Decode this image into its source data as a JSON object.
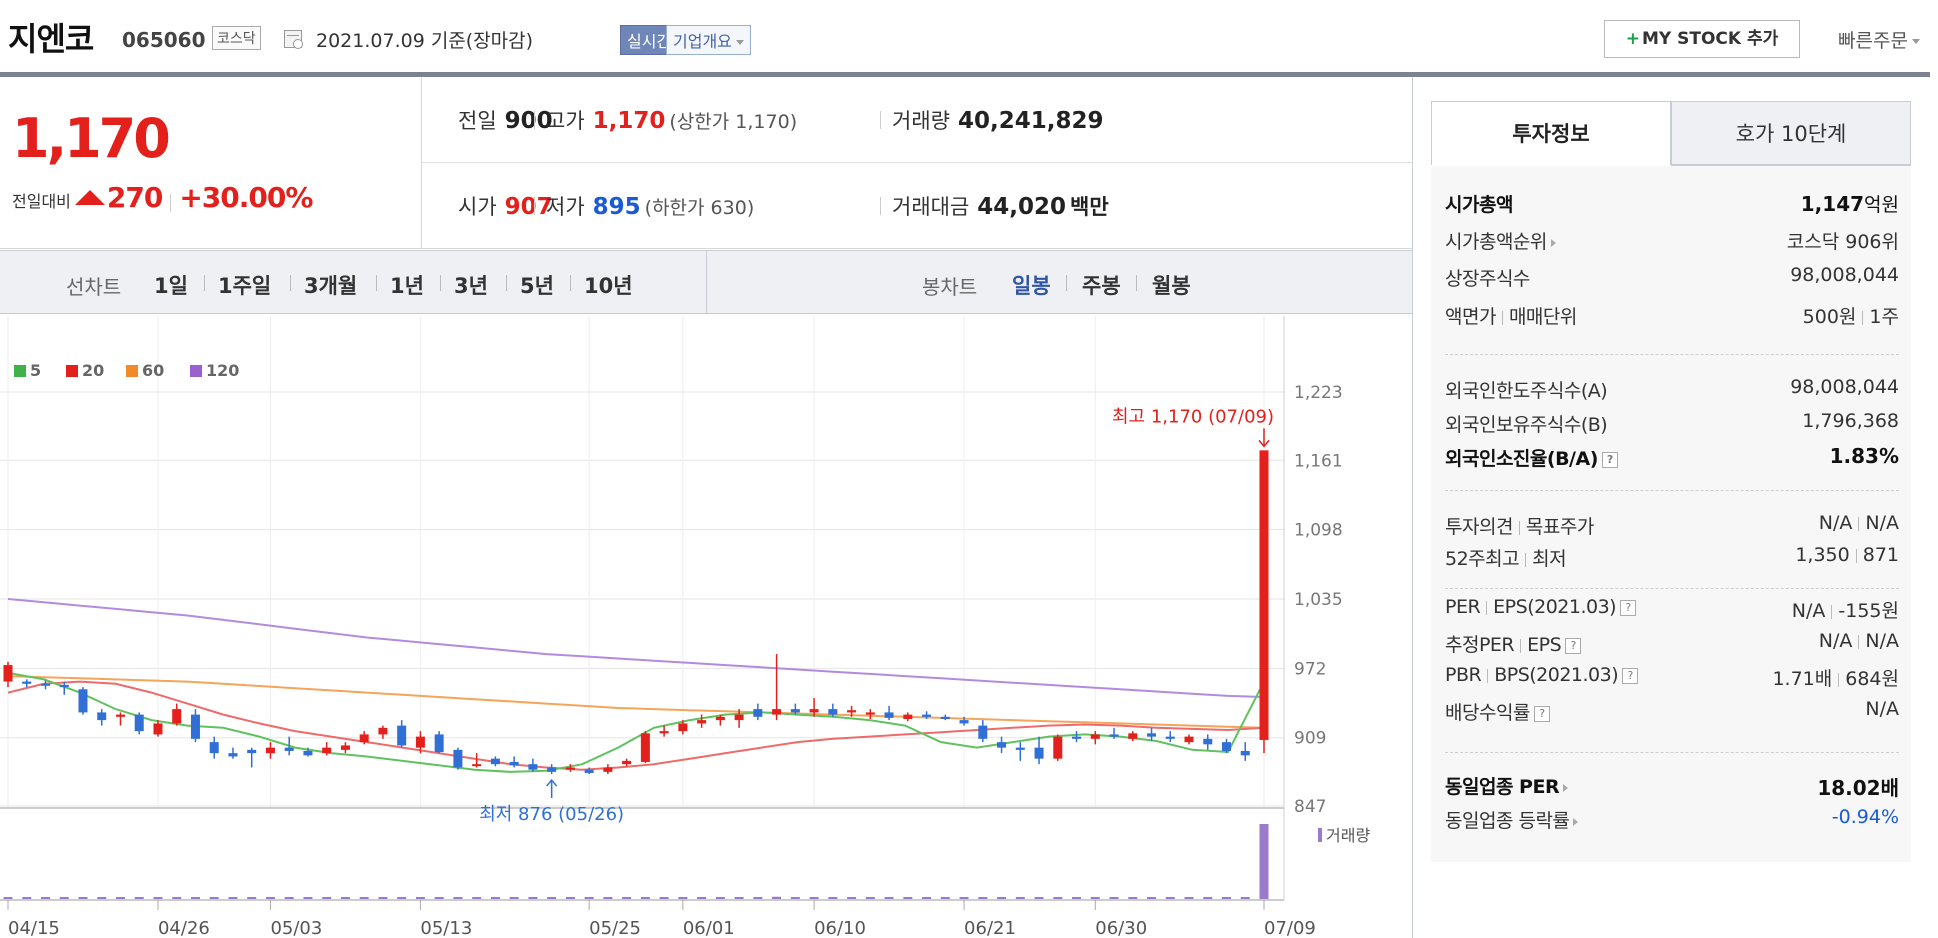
{
  "header": {
    "company": "지엔코",
    "code": "065060",
    "market": "코스닥",
    "date_text": "2021.07.09  기준(장마감)",
    "realtime_label": "실시간",
    "company_info_label": "기업개요",
    "mystock_label": "MY STOCK 추가",
    "quick_order_label": "빠른주문"
  },
  "price": {
    "current": "1,170",
    "change_label": "전일대비",
    "change_value": "270",
    "change_pct": "+30.00%"
  },
  "stats": {
    "prev_label": "전일",
    "prev_value": "900",
    "high_label": "고가",
    "high_value": "1,170",
    "high_paren": "(상한가 1,170)",
    "volume_label": "거래량",
    "volume_value": "40,241,829",
    "open_label": "시가",
    "open_value": "907",
    "low_label": "저가",
    "low_value": "895",
    "low_paren": "(하한가 630)",
    "amount_label": "거래대금",
    "amount_value": "44,020",
    "amount_unit": "백만"
  },
  "period_bar": {
    "line_label": "선차트",
    "line_items": [
      "1일",
      "1주일",
      "3개월",
      "1년",
      "3년",
      "5년",
      "10년"
    ],
    "candle_label": "봉차트",
    "candle_items": [
      "일봉",
      "주봉",
      "월봉"
    ],
    "candle_selected": "일봉"
  },
  "chart_data": {
    "type": "candlestick",
    "legend": [
      "5",
      "20",
      "60",
      "120"
    ],
    "legend_colors": [
      "#3db34a",
      "#e3201b",
      "#f08a2a",
      "#9b5fd0"
    ],
    "yticks": [
      "1,223",
      "1,161",
      "1,098",
      "1,035",
      "972",
      "909",
      "847"
    ],
    "ylim": [
      847,
      1223
    ],
    "xticks": [
      "04/15",
      "04/26",
      "05/03",
      "05/13",
      "05/25",
      "06/01",
      "06/10",
      "06/21",
      "06/30",
      "07/09"
    ],
    "high_annotation": "최고 1,170 (07/09)",
    "low_annotation": "최저 876 (05/26)",
    "volume_label": "거래량",
    "candles": [
      [
        960,
        978,
        955,
        975
      ],
      [
        960,
        962,
        955,
        958
      ],
      [
        958,
        961,
        953,
        957
      ],
      [
        957,
        960,
        948,
        955
      ],
      [
        953,
        955,
        930,
        932
      ],
      [
        932,
        935,
        920,
        925
      ],
      [
        928,
        932,
        920,
        930
      ],
      [
        930,
        932,
        912,
        915
      ],
      [
        912,
        925,
        910,
        922
      ],
      [
        922,
        940,
        920,
        935
      ],
      [
        930,
        935,
        905,
        908
      ],
      [
        905,
        910,
        890,
        895
      ],
      [
        895,
        900,
        890,
        892
      ],
      [
        898,
        900,
        882,
        895
      ],
      [
        895,
        905,
        890,
        900
      ],
      [
        900,
        910,
        893,
        897
      ],
      [
        897,
        900,
        892,
        893
      ],
      [
        895,
        905,
        893,
        900
      ],
      [
        898,
        905,
        895,
        902
      ],
      [
        905,
        915,
        903,
        912
      ],
      [
        912,
        920,
        908,
        918
      ],
      [
        920,
        925,
        900,
        902
      ],
      [
        900,
        915,
        895,
        910
      ],
      [
        912,
        915,
        895,
        896
      ],
      [
        898,
        900,
        880,
        882
      ],
      [
        885,
        895,
        882,
        885
      ],
      [
        890,
        892,
        883,
        885
      ],
      [
        887,
        892,
        882,
        884
      ],
      [
        885,
        890,
        878,
        880
      ],
      [
        882,
        885,
        876,
        878
      ],
      [
        880,
        885,
        878,
        882
      ],
      [
        880,
        882,
        876,
        877
      ],
      [
        878,
        885,
        876,
        882
      ],
      [
        885,
        890,
        883,
        888
      ],
      [
        887,
        915,
        886,
        913
      ],
      [
        913,
        920,
        910,
        915
      ],
      [
        915,
        925,
        912,
        922
      ],
      [
        922,
        930,
        918,
        925
      ],
      [
        925,
        930,
        920,
        928
      ],
      [
        925,
        935,
        918,
        930
      ],
      [
        935,
        940,
        925,
        928
      ],
      [
        930,
        985,
        925,
        935
      ],
      [
        935,
        940,
        930,
        932
      ],
      [
        932,
        945,
        928,
        935
      ],
      [
        935,
        940,
        928,
        930
      ],
      [
        932,
        938,
        928,
        934
      ],
      [
        930,
        935,
        926,
        932
      ],
      [
        932,
        938,
        925,
        927
      ],
      [
        926,
        932,
        924,
        930
      ],
      [
        930,
        933,
        926,
        928
      ],
      [
        928,
        930,
        925,
        926
      ],
      [
        925,
        928,
        920,
        922
      ],
      [
        920,
        925,
        905,
        908
      ],
      [
        905,
        910,
        895,
        900
      ],
      [
        900,
        905,
        888,
        898
      ],
      [
        900,
        910,
        885,
        890
      ],
      [
        890,
        912,
        888,
        910
      ],
      [
        910,
        915,
        905,
        908
      ],
      [
        908,
        915,
        903,
        912
      ],
      [
        912,
        918,
        908,
        910
      ],
      [
        908,
        915,
        906,
        913
      ],
      [
        913,
        918,
        906,
        910
      ],
      [
        910,
        915,
        905,
        908
      ],
      [
        905,
        912,
        903,
        910
      ],
      [
        908,
        912,
        898,
        903
      ],
      [
        905,
        908,
        895,
        897
      ],
      [
        897,
        905,
        888,
        893
      ],
      [
        907,
        1170,
        895,
        1170
      ]
    ],
    "ma120": [
      1035,
      1032,
      1029,
      1026,
      1023,
      1020,
      1016,
      1012,
      1008,
      1004,
      1000,
      997,
      994,
      991,
      988,
      985,
      983,
      981,
      979,
      977,
      975,
      973,
      971,
      969,
      967,
      965,
      963,
      961,
      959,
      957,
      955,
      953,
      951,
      949,
      947,
      946
    ],
    "ma60": [
      965,
      964,
      963,
      962,
      961,
      960,
      958,
      956,
      954,
      952,
      950,
      948,
      946,
      944,
      942,
      940,
      938,
      936,
      935,
      934,
      933,
      932,
      931,
      930,
      929,
      928,
      927,
      926,
      925,
      924,
      923,
      922,
      921,
      920,
      919,
      918
    ],
    "ma20": [
      950,
      958,
      960,
      958,
      950,
      940,
      930,
      922,
      915,
      910,
      905,
      900,
      895,
      890,
      885,
      882,
      880,
      882,
      885,
      890,
      895,
      900,
      905,
      908,
      910,
      912,
      914,
      916,
      918,
      920,
      921,
      920,
      918,
      917,
      916,
      918
    ],
    "ma5": [
      968,
      962,
      950,
      935,
      925,
      920,
      918,
      910,
      900,
      895,
      892,
      888,
      884,
      880,
      878,
      879,
      885,
      900,
      918,
      925,
      930,
      932,
      930,
      928,
      925,
      920,
      905,
      900,
      905,
      910,
      912,
      910,
      906,
      898,
      896,
      960
    ],
    "volumes": [
      0.02,
      0.01,
      0.01,
      0.01,
      0.02,
      0.01,
      0.01,
      0.02,
      0.01,
      0.01,
      0.02,
      0.01,
      0.01,
      0.01,
      0.01,
      0.01,
      0.01,
      0.01,
      0.01,
      0.01,
      0.01,
      0.01,
      0.01,
      0.01,
      0.01,
      0.01,
      0.01,
      0.01,
      0.01,
      0.01,
      0.01,
      0.01,
      0.01,
      0.01,
      0.01,
      0.01,
      0.01,
      0.01,
      0.01,
      0.01,
      0.02,
      0.03,
      0.01,
      0.01,
      0.01,
      0.01,
      0.01,
      0.01,
      0.01,
      0.01,
      0.01,
      0.01,
      0.02,
      0.01,
      0.01,
      0.01,
      0.01,
      0.01,
      0.01,
      0.01,
      0.01,
      0.01,
      0.01,
      0.01,
      0.01,
      0.01,
      0.01,
      1.0
    ]
  },
  "right_panel": {
    "tab_invest": "투자정보",
    "tab_hoga": "호가 10단계",
    "market_cap_label": "시가총액",
    "market_cap_value": "1,147",
    "market_cap_unit": "억원",
    "cap_rank_label": "시가총액순위",
    "cap_rank_value": "코스닥 906위",
    "shares_label": "상장주식수",
    "shares_value": "98,008,044",
    "par_label": "액면가",
    "unit_label": "매매단위",
    "par_value": "500원",
    "unit_value": "1주",
    "foreign_limit_label": "외국인한도주식수(A)",
    "foreign_limit_value": "98,008,044",
    "foreign_own_label": "외국인보유주식수(B)",
    "foreign_own_value": "1,796,368",
    "foreign_ratio_label": "외국인소진율(B/A)",
    "foreign_ratio_value": "1.83%",
    "opinion_label": "투자의견",
    "target_label": "목표주가",
    "opinion_value": "N/A",
    "target_value": "N/A",
    "w52_high_label": "52주최고",
    "w52_low_label": "최저",
    "w52_high_value": "1,350",
    "w52_low_value": "871",
    "per_label": "PER",
    "eps_label": "EPS(2021.03)",
    "per_value": "N/A",
    "eps_value": "-155원",
    "est_per_label": "추정PER",
    "est_eps_label": "EPS",
    "est_per_value": "N/A",
    "est_eps_value": "N/A",
    "pbr_label": "PBR",
    "bps_label": "BPS(2021.03)",
    "pbr_value": "1.71배",
    "bps_value": "684원",
    "div_label": "배당수익률",
    "div_value": "N/A",
    "sector_per_label": "동일업종 PER",
    "sector_per_value": "18.02배",
    "sector_chg_label": "동일업종 등락률",
    "sector_chg_value": "-0.94%"
  }
}
